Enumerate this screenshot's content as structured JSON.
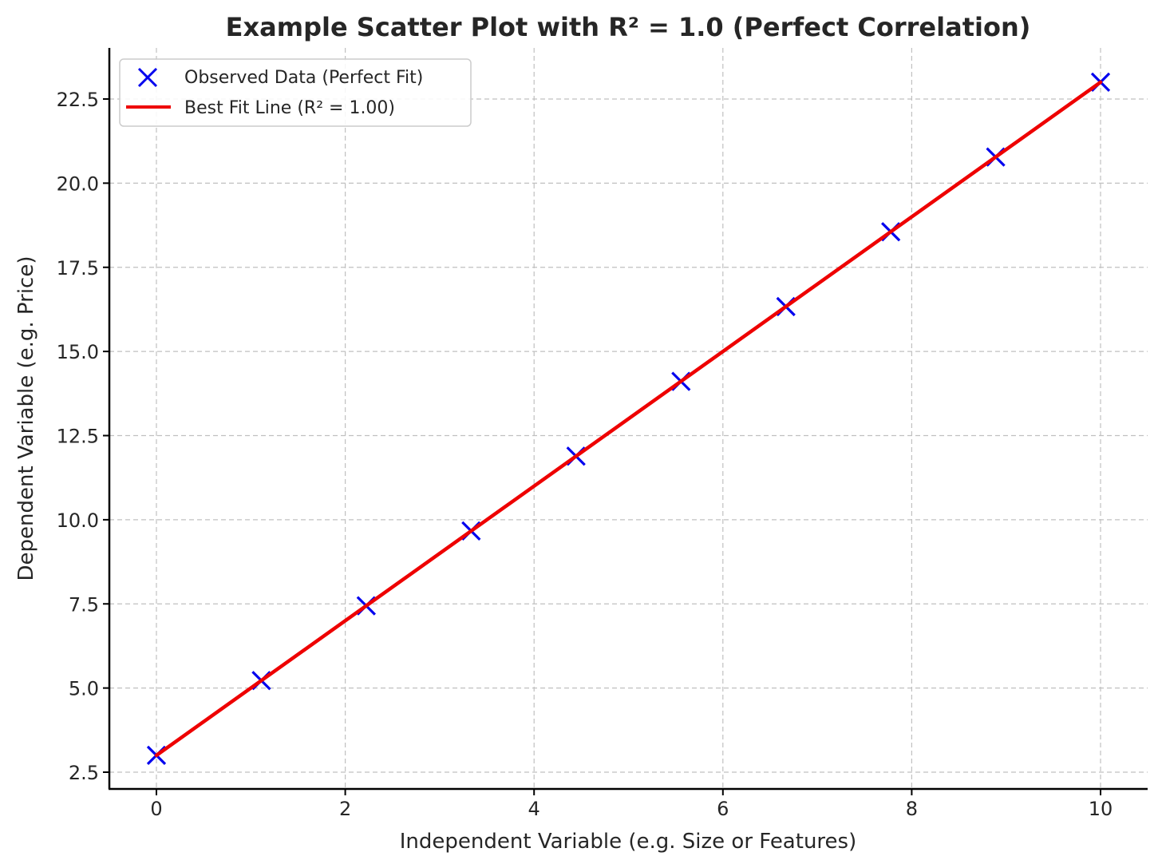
{
  "chart_data": {
    "type": "scatter",
    "title": "Example Scatter Plot with R² = 1.0 (Perfect Correlation)",
    "xlabel": "Independent Variable (e.g. Size or Features)",
    "ylabel": "Dependent Variable (e.g. Price)",
    "xlim": [
      -0.5,
      10.5
    ],
    "ylim": [
      2.0,
      24.0
    ],
    "xticks": [
      0,
      2,
      4,
      6,
      8,
      10
    ],
    "xtick_labels": [
      "0",
      "2",
      "4",
      "6",
      "8",
      "10"
    ],
    "yticks": [
      2.5,
      5.0,
      7.5,
      10.0,
      12.5,
      15.0,
      17.5,
      20.0,
      22.5
    ],
    "ytick_labels": [
      "2.5",
      "5.0",
      "7.5",
      "10.0",
      "12.5",
      "15.0",
      "17.5",
      "20.0",
      "22.5"
    ],
    "grid": true,
    "legend_position": "upper left",
    "series": [
      {
        "name": "Observed Data (Perfect Fit)",
        "type": "scatter",
        "marker": "x",
        "color": "#0000ee",
        "x": [
          0.0,
          1.111,
          2.222,
          3.333,
          4.444,
          5.556,
          6.667,
          7.778,
          8.889,
          10.0
        ],
        "y": [
          3.0,
          5.222,
          7.444,
          9.667,
          11.889,
          14.111,
          16.333,
          18.556,
          20.778,
          23.0
        ]
      },
      {
        "name": "Best Fit Line (R² = 1.00)",
        "type": "line",
        "color": "#ee0000",
        "x": [
          0.0,
          10.0
        ],
        "y": [
          3.0,
          23.0
        ],
        "slope": 2.0,
        "intercept": 3.0,
        "r_squared": 1.0
      }
    ]
  },
  "legend": {
    "items": [
      {
        "label": "Observed Data (Perfect Fit)",
        "icon": "x-marker-icon"
      },
      {
        "label": "Best Fit Line (R² = 1.00)",
        "icon": "line-icon"
      }
    ]
  },
  "colors": {
    "scatter": "#0000ee",
    "line": "#ee0000",
    "grid": "#c0c0c0",
    "axis": "#000000",
    "text": "#262626"
  }
}
